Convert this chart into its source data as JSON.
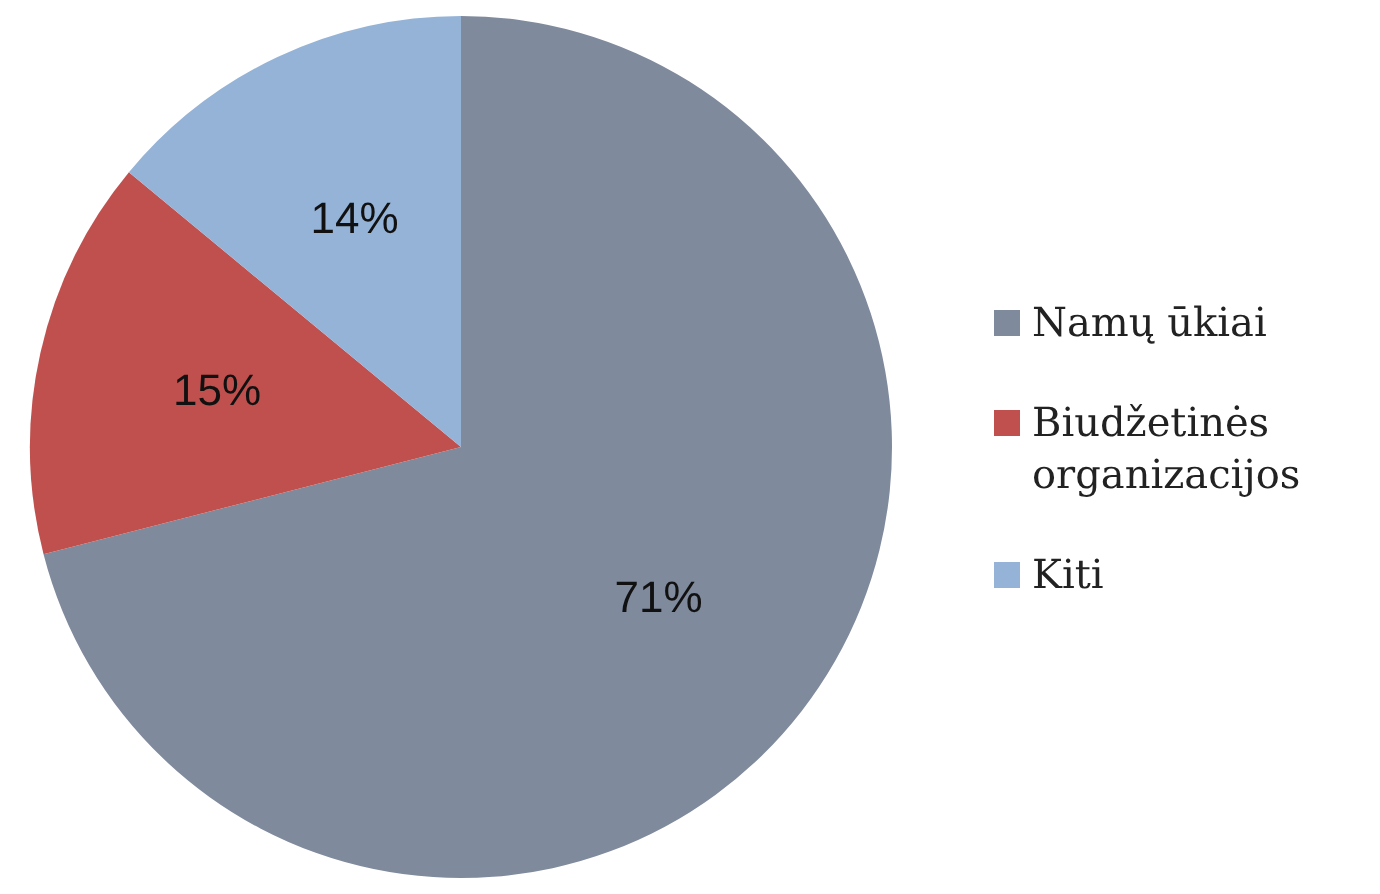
{
  "chart_data": {
    "type": "pie",
    "categories": [
      "Namų ūkiai",
      "Biudžetinės organizacijos",
      "Kiti"
    ],
    "values": [
      71,
      15,
      14
    ],
    "colors": [
      "#7f8a9c",
      "#c0504d",
      "#95b3d7"
    ],
    "value_labels": [
      "71%",
      "15%",
      "14%"
    ],
    "legend": "right"
  }
}
